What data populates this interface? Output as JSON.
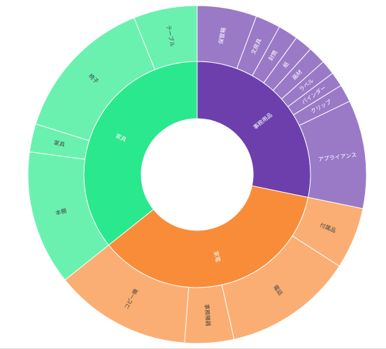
{
  "chart_data": {
    "type": "sunburst",
    "groups": [
      {
        "name": "事務用品",
        "color": "#6c3fad",
        "child_color": "#9a7ac7",
        "children": [
          "保管箱",
          "文房具",
          "封筒",
          "紙",
          "画材",
          "ラベル",
          "バインダー",
          "クリップ",
          "アプライアンス"
        ],
        "values": [
          5.7,
          2.4,
          1.9,
          1.7,
          1.7,
          1.4,
          1.4,
          1.7,
          10.4
        ]
      },
      {
        "name": "家電",
        "color": "#f98c38",
        "child_color": "#fbae73",
        "children": [
          "付属品",
          "電話",
          "事務機器",
          "コピー機"
        ],
        "values": [
          5.9,
          12.4,
          4.7,
          13.1
        ]
      },
      {
        "name": "家具",
        "color": "#2ae88d",
        "child_color": "#6af1b0",
        "children": [
          "本棚",
          "家具",
          "椅子",
          "テーブル"
        ],
        "values": [
          12.9,
          2.7,
          14.1,
          6.1
        ]
      }
    ]
  }
}
